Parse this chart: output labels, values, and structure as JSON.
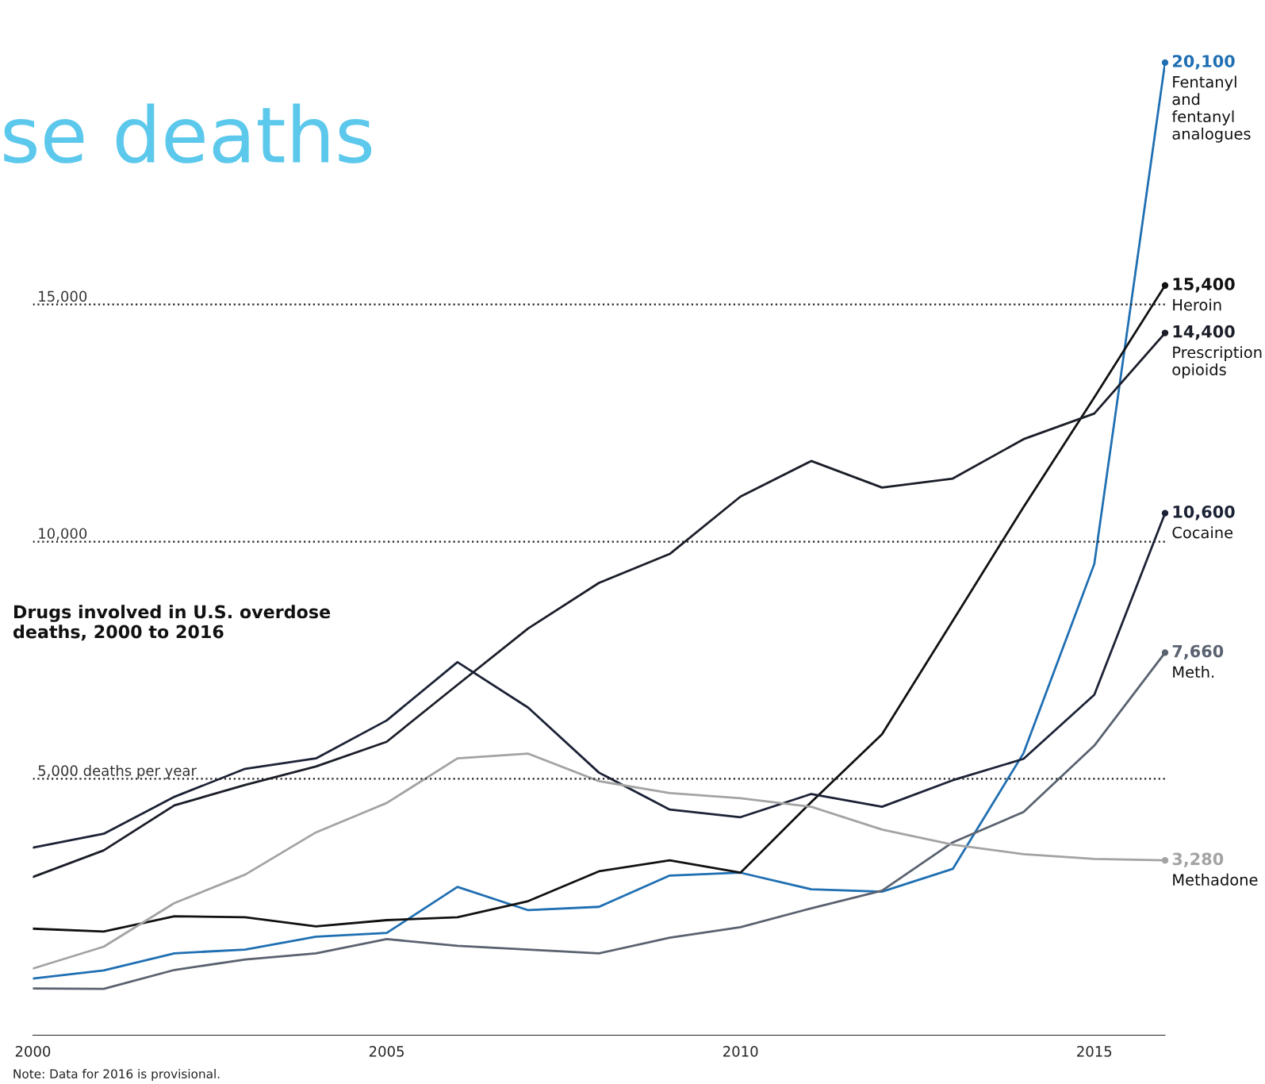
{
  "chart_data": {
    "type": "line",
    "title": "se deaths",
    "subtitle": "Drugs involved in U.S. overdose deaths, 2000 to 2016",
    "annotations": [
      "Note: Data for 2016 is provisional."
    ],
    "x": [
      2000,
      2001,
      2002,
      2003,
      2004,
      2005,
      2006,
      2007,
      2008,
      2009,
      2010,
      2011,
      2012,
      2013,
      2014,
      2015,
      2016
    ],
    "series": [
      {
        "name": "Fentanyl and fentanyl analogues",
        "color": "#1f6fb2",
        "values": [
          790,
          960,
          1320,
          1400,
          1670,
          1750,
          2720,
          2230,
          2300,
          2960,
          3020,
          2670,
          2620,
          3100,
          5540,
          9530,
          20100
        ],
        "value_labels": [
          null,
          null,
          null,
          null,
          null,
          null,
          null,
          null,
          null,
          null,
          null,
          null,
          null,
          null,
          null,
          null,
          "20,100"
        ]
      },
      {
        "name": "Heroin",
        "color": "#111111",
        "values": [
          1840,
          1780,
          2100,
          2080,
          1890,
          2020,
          2080,
          2420,
          3050,
          3280,
          3020,
          4510,
          5940,
          8330,
          10730,
          13040,
          15400
        ],
        "value_labels": [
          null,
          null,
          null,
          null,
          null,
          null,
          null,
          null,
          null,
          null,
          null,
          null,
          null,
          null,
          null,
          null,
          "15,400"
        ]
      },
      {
        "name": "Prescription opioids",
        "color": "#1b1e28",
        "values": [
          2930,
          3490,
          4440,
          4870,
          5260,
          5780,
          6980,
          8170,
          9130,
          9740,
          10950,
          11700,
          11140,
          11330,
          12160,
          12700,
          14400
        ],
        "value_labels": [
          null,
          null,
          null,
          null,
          null,
          null,
          null,
          null,
          null,
          null,
          null,
          null,
          null,
          null,
          null,
          null,
          "14,400"
        ]
      },
      {
        "name": "Cocaine",
        "color": "#1c2236",
        "values": [
          3550,
          3840,
          4620,
          5210,
          5430,
          6230,
          7460,
          6500,
          5130,
          4350,
          4190,
          4680,
          4410,
          4970,
          5420,
          6770,
          10600
        ],
        "value_labels": [
          null,
          null,
          null,
          null,
          null,
          null,
          null,
          null,
          null,
          null,
          null,
          null,
          null,
          null,
          null,
          null,
          "10,600"
        ]
      },
      {
        "name": "Meth.",
        "color": "#5a6270",
        "values": [
          580,
          570,
          970,
          1190,
          1320,
          1620,
          1480,
          1400,
          1320,
          1650,
          1870,
          2270,
          2640,
          3660,
          4300,
          5700,
          7660
        ],
        "value_labels": [
          null,
          null,
          null,
          null,
          null,
          null,
          null,
          null,
          null,
          null,
          null,
          null,
          null,
          null,
          null,
          null,
          "7,660"
        ]
      },
      {
        "name": "Methadone",
        "color": "#a3a3a3",
        "values": [
          1000,
          1460,
          2380,
          2980,
          3870,
          4490,
          5430,
          5530,
          4950,
          4700,
          4590,
          4410,
          3930,
          3610,
          3410,
          3310,
          3280
        ],
        "value_labels": [
          null,
          null,
          null,
          null,
          null,
          null,
          null,
          null,
          null,
          null,
          null,
          null,
          null,
          null,
          null,
          null,
          "3,280"
        ]
      }
    ],
    "xlim": [
      2000,
      2016
    ],
    "xticks": [
      2000,
      2005,
      2010,
      2015
    ],
    "tick_labels": "x",
    "ref_lines": [
      {
        "axis": "y",
        "value": 5000,
        "label": "5,000 deaths per year",
        "color": "#222222",
        "line_style": "dotted"
      },
      {
        "axis": "y",
        "value": 10000,
        "label": "10,000",
        "color": "#222222",
        "line_style": "dotted"
      },
      {
        "axis": "y",
        "value": 15000,
        "label": "15,000",
        "color": "#222222",
        "line_style": "dotted"
      }
    ],
    "grid": false,
    "legend": false
  }
}
